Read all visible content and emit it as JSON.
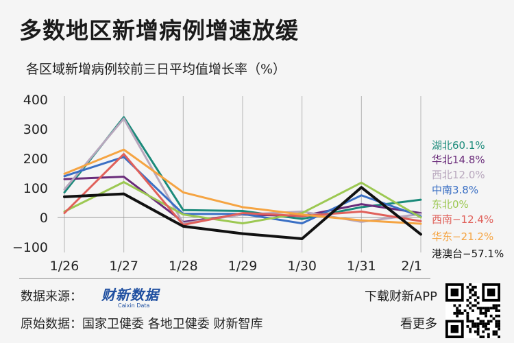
{
  "title": "多数地区新增病例增速放缓",
  "subtitle": "各区域新增病例较前三日平均值增长率（%）",
  "footer": {
    "source_label": "数据来源：",
    "logo_text": "财新数据",
    "logo_sub": "Caixin Data",
    "original_source": "原始数据：国家卫健委 各地卫健委 财新智库",
    "download": "下载财新APP",
    "more": "看更多"
  },
  "qr_icon": "qr-code-icon",
  "chart_data": {
    "type": "line",
    "categories": [
      "1/26",
      "1/27",
      "1/28",
      "1/29",
      "1/30",
      "1/31",
      "2/1"
    ],
    "yticks": [
      400,
      300,
      200,
      100,
      0,
      -100
    ],
    "ytick_labels": [
      "400",
      "300",
      "200",
      "100",
      "0",
      "−100"
    ],
    "ylim": [
      -100,
      400
    ],
    "grid": "vertical",
    "series": [
      {
        "name": "湖北",
        "label": "湖北60.1%",
        "color": "#1a8a7a",
        "values": [
          85,
          340,
          25,
          22,
          -5,
          35,
          60.1
        ]
      },
      {
        "name": "华北",
        "label": "华北14.8%",
        "color": "#6a2c7a",
        "values": [
          130,
          138,
          -15,
          10,
          5,
          45,
          14.8
        ]
      },
      {
        "name": "西北",
        "label": "西北12.0%",
        "color": "#b8a7bd",
        "values": [
          95,
          335,
          -20,
          10,
          20,
          -15,
          12.0
        ]
      },
      {
        "name": "中南",
        "label": "中南3.8%",
        "color": "#3a6fc4",
        "values": [
          140,
          205,
          12,
          12,
          -20,
          75,
          3.8
        ]
      },
      {
        "name": "东北",
        "label": "东北0%",
        "color": "#9cc852",
        "values": [
          20,
          120,
          10,
          -20,
          15,
          118,
          0
        ]
      },
      {
        "name": "西南",
        "label": "西南−12.4%",
        "color": "#e0605a",
        "values": [
          15,
          215,
          -25,
          15,
          5,
          20,
          -12.4
        ]
      },
      {
        "name": "华东",
        "label": "华东−21.2%",
        "color": "#f5a442",
        "values": [
          148,
          230,
          85,
          35,
          10,
          -10,
          -21.2
        ]
      },
      {
        "name": "港澳台",
        "label": "港澳台−57.1%",
        "color": "#111111",
        "values": [
          70,
          80,
          -30,
          -55,
          -72,
          102,
          -57.1
        ]
      }
    ]
  }
}
